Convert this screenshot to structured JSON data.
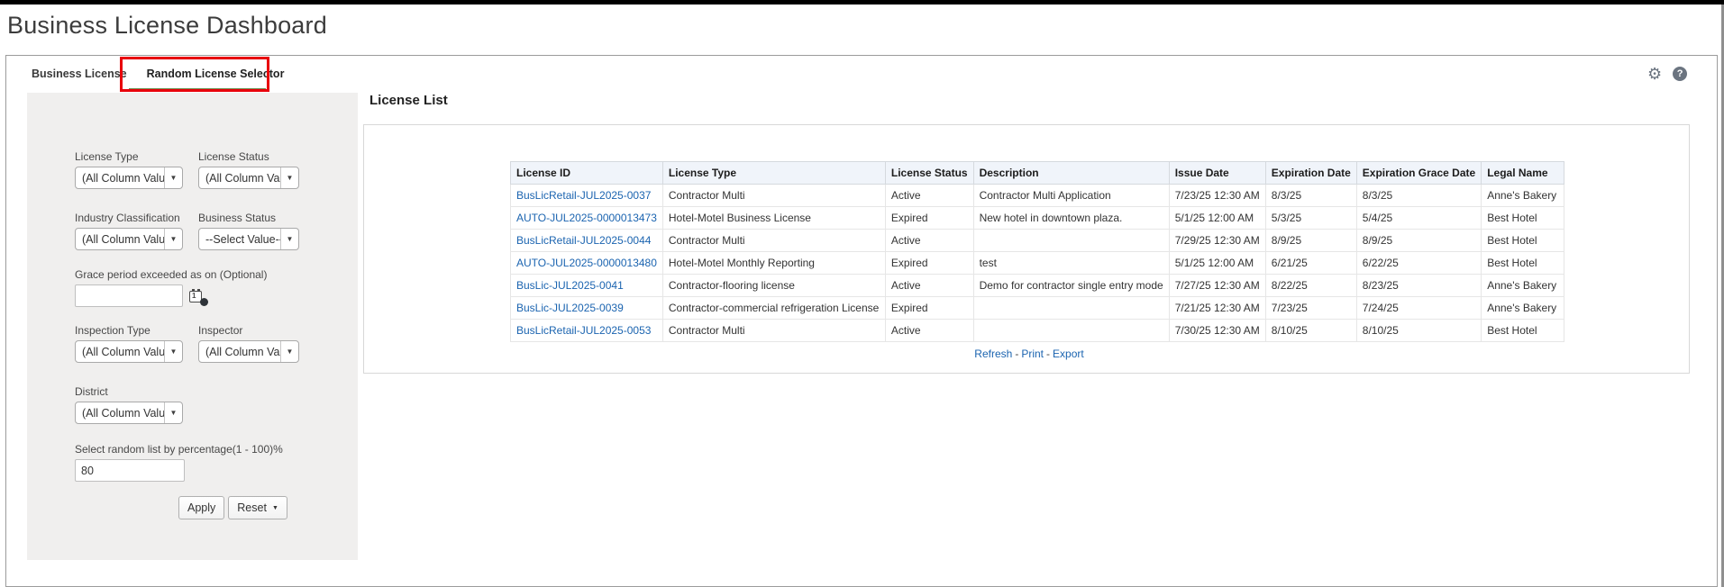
{
  "page": {
    "title": "Business License Dashboard"
  },
  "toolbar": {
    "settings_icon": "⚙",
    "help_icon": "?"
  },
  "tabs": {
    "items": [
      {
        "label": "Business License",
        "active": false
      },
      {
        "label": "Random License Selector",
        "active": true
      }
    ],
    "active_underline_color": "#6d8f52",
    "annotation_color": "#e8000b"
  },
  "filters": {
    "license_type": {
      "label": "License Type",
      "value": "(All Column Values)"
    },
    "license_status": {
      "label": "License Status",
      "value": "(All Column Values)"
    },
    "industry_classification": {
      "label": "Industry Classification",
      "value": "(All Column Values)"
    },
    "business_status": {
      "label": "Business Status",
      "value": "--Select Value--"
    },
    "grace_period": {
      "label": "Grace period exceeded as on (Optional)",
      "value": ""
    },
    "inspection_type": {
      "label": "Inspection Type",
      "value": "(All Column Values)"
    },
    "inspector": {
      "label": "Inspector",
      "value": "(All Column Values)"
    },
    "district": {
      "label": "District",
      "value": "(All Column Values)"
    },
    "random_percentage": {
      "label": "Select random list by percentage(1 - 100)%",
      "value": "80"
    },
    "apply_label": "Apply",
    "reset_label": "Reset",
    "caret_glyph": "▼"
  },
  "license_list": {
    "title": "License List",
    "columns": [
      "License ID",
      "License Type",
      "License Status",
      "Description",
      "Issue Date",
      "Expiration Date",
      "Expiration Grace Date",
      "Legal Name"
    ],
    "rows": [
      [
        "BusLicRetail-JUL2025-0037",
        "Contractor Multi",
        "Active",
        "Contractor Multi Application",
        "7/23/25 12:30 AM",
        "8/3/25",
        "8/3/25",
        "Anne's Bakery"
      ],
      [
        "AUTO-JUL2025-0000013473",
        "Hotel-Motel Business License",
        "Expired",
        "New hotel in downtown plaza.",
        "5/1/25 12:00 AM",
        "5/3/25",
        "5/4/25",
        "Best Hotel"
      ],
      [
        "BusLicRetail-JUL2025-0044",
        "Contractor Multi",
        "Active",
        "",
        "7/29/25 12:30 AM",
        "8/9/25",
        "8/9/25",
        "Best Hotel"
      ],
      [
        "AUTO-JUL2025-0000013480",
        "Hotel-Motel Monthly Reporting",
        "Expired",
        "test",
        "5/1/25 12:00 AM",
        "6/21/25",
        "6/22/25",
        "Best Hotel"
      ],
      [
        "BusLic-JUL2025-0041",
        "Contractor-flooring license",
        "Active",
        "Demo for contractor single entry mode",
        "7/27/25 12:30 AM",
        "8/22/25",
        "8/23/25",
        "Anne's Bakery"
      ],
      [
        "BusLic-JUL2025-0039",
        "Contractor-commercial refrigeration License",
        "Expired",
        "",
        "7/21/25 12:30 AM",
        "7/23/25",
        "7/24/25",
        "Anne's Bakery"
      ],
      [
        "BusLicRetail-JUL2025-0053",
        "Contractor Multi",
        "Active",
        "",
        "7/30/25 12:30 AM",
        "8/10/25",
        "8/10/25",
        "Best Hotel"
      ]
    ],
    "footer_links": [
      "Refresh",
      "Print",
      "Export"
    ],
    "footer_separator": "-",
    "link_color": "#1b64b0",
    "header_bg": "#f0f4fa"
  }
}
